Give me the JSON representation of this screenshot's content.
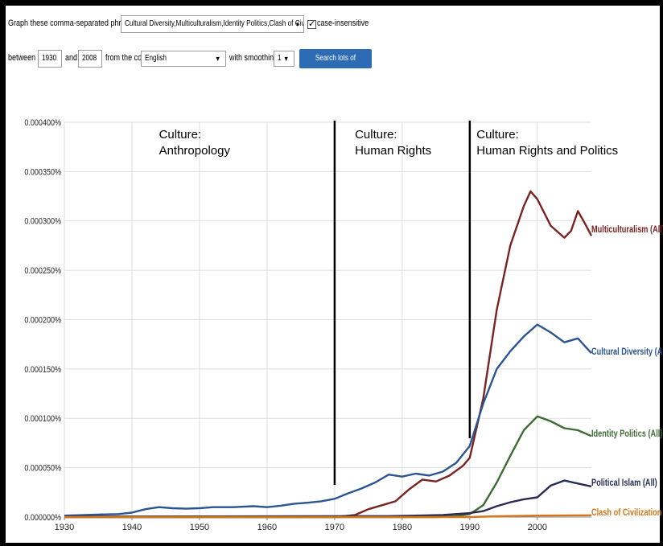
{
  "controls": {
    "phrases_label": "Graph these comma-separated phrases:",
    "phrases_value": "Cultural Diversity,Multiculturalism,Identity Politics,Clash of Civilizatic",
    "case_label": "case-insensitive",
    "case_checked": "✓",
    "between_label": "between",
    "start_year": "1930",
    "and_label": "and",
    "end_year": "2008",
    "corpus_label": "from the corpus",
    "corpus_value": "English",
    "smoothing_label": "with smoothing of",
    "smoothing_value": "1",
    "search_button": "Search lots of books"
  },
  "chart_data": {
    "type": "line",
    "xlim": [
      1930,
      2008
    ],
    "ylim": [
      0,
      0.0004
    ],
    "x_ticks": [
      "1930",
      "1940",
      "1950",
      "1960",
      "1970",
      "1980",
      "1990",
      "2000"
    ],
    "y_ticks": [
      "0.000000%",
      "0.000050%",
      "0.000100%",
      "0.000150%",
      "0.000200%",
      "0.000250%",
      "0.000300%",
      "0.000350%",
      "0.000400%"
    ],
    "grid": true,
    "annotations": [
      {
        "lines": [
          "Culture:",
          "Anthropology"
        ],
        "x": 1944
      },
      {
        "lines": [
          "Culture:",
          "Human Rights"
        ],
        "x": 1973
      },
      {
        "lines": [
          "Culture:",
          "Human Rights and Politics"
        ],
        "x": 1991
      }
    ],
    "dividers": [
      1970,
      1990
    ],
    "series": [
      {
        "name": "Multiculturalism (All)",
        "color": "#7a2320",
        "x": [
          1930,
          1965,
          1970,
          1973,
          1975,
          1977,
          1979,
          1981,
          1983,
          1985,
          1987,
          1989,
          1990,
          1992,
          1994,
          1996,
          1998,
          1999,
          2000,
          2002,
          2004,
          2005,
          2006,
          2007,
          2008
        ],
        "y": [
          0,
          0,
          0,
          2e-06,
          8e-06,
          1.2e-05,
          1.6e-05,
          2.8e-05,
          3.8e-05,
          3.6e-05,
          4.2e-05,
          5.2e-05,
          6e-05,
          0.00012,
          0.00021,
          0.000275,
          0.000315,
          0.00033,
          0.000322,
          0.000295,
          0.000283,
          0.00029,
          0.00031,
          0.000298,
          0.000285
        ]
      },
      {
        "name": "Cultural Diversity (All)",
        "color": "#2b5592",
        "x": [
          1930,
          1935,
          1938,
          1940,
          1942,
          1944,
          1946,
          1948,
          1950,
          1952,
          1955,
          1958,
          1960,
          1962,
          1964,
          1966,
          1968,
          1970,
          1972,
          1974,
          1976,
          1978,
          1980,
          1982,
          1984,
          1986,
          1988,
          1990,
          1992,
          1994,
          1996,
          1998,
          2000,
          2002,
          2004,
          2006,
          2008
        ],
        "y": [
          1.5e-06,
          2.5e-06,
          3e-06,
          4.5e-06,
          8e-06,
          1e-05,
          9e-06,
          8.5e-06,
          9e-06,
          1e-05,
          1e-05,
          1.1e-05,
          1e-05,
          1.15e-05,
          1.35e-05,
          1.45e-05,
          1.6e-05,
          1.85e-05,
          2.4e-05,
          2.9e-05,
          3.5e-05,
          4.3e-05,
          4.1e-05,
          4.4e-05,
          4.2e-05,
          4.6e-05,
          5.5e-05,
          7.2e-05,
          0.000115,
          0.00015,
          0.000168,
          0.000183,
          0.000195,
          0.000187,
          0.000177,
          0.000181,
          0.000166
        ]
      },
      {
        "name": "Identity Politics (All)",
        "color": "#3e6b34",
        "x": [
          1930,
          1985,
          1988,
          1990,
          1992,
          1994,
          1996,
          1998,
          2000,
          2002,
          2004,
          2006,
          2008
        ],
        "y": [
          0,
          0,
          1e-06,
          3e-06,
          1.2e-05,
          3.5e-05,
          6.2e-05,
          8.8e-05,
          0.000102,
          9.7e-05,
          9e-05,
          8.8e-05,
          8.2e-05
        ]
      },
      {
        "name": "Political Islam (All)",
        "color": "#2b2a55",
        "x": [
          1930,
          1978,
          1982,
          1986,
          1990,
          1992,
          1994,
          1996,
          1998,
          2000,
          2002,
          2004,
          2006,
          2008
        ],
        "y": [
          5e-07,
          1e-06,
          1.5e-06,
          2e-06,
          4e-06,
          6e-06,
          1.1e-05,
          1.5e-05,
          1.8e-05,
          2e-05,
          3.2e-05,
          3.7e-05,
          3.4e-05,
          3.1e-05
        ]
      },
      {
        "name": "Clash of Civilization (A",
        "color": "#d4761c",
        "x": [
          1930,
          1990,
          1994,
          2000,
          2008
        ],
        "y": [
          0,
          0,
          8e-07,
          1.5e-06,
          1.8e-06
        ]
      }
    ]
  }
}
